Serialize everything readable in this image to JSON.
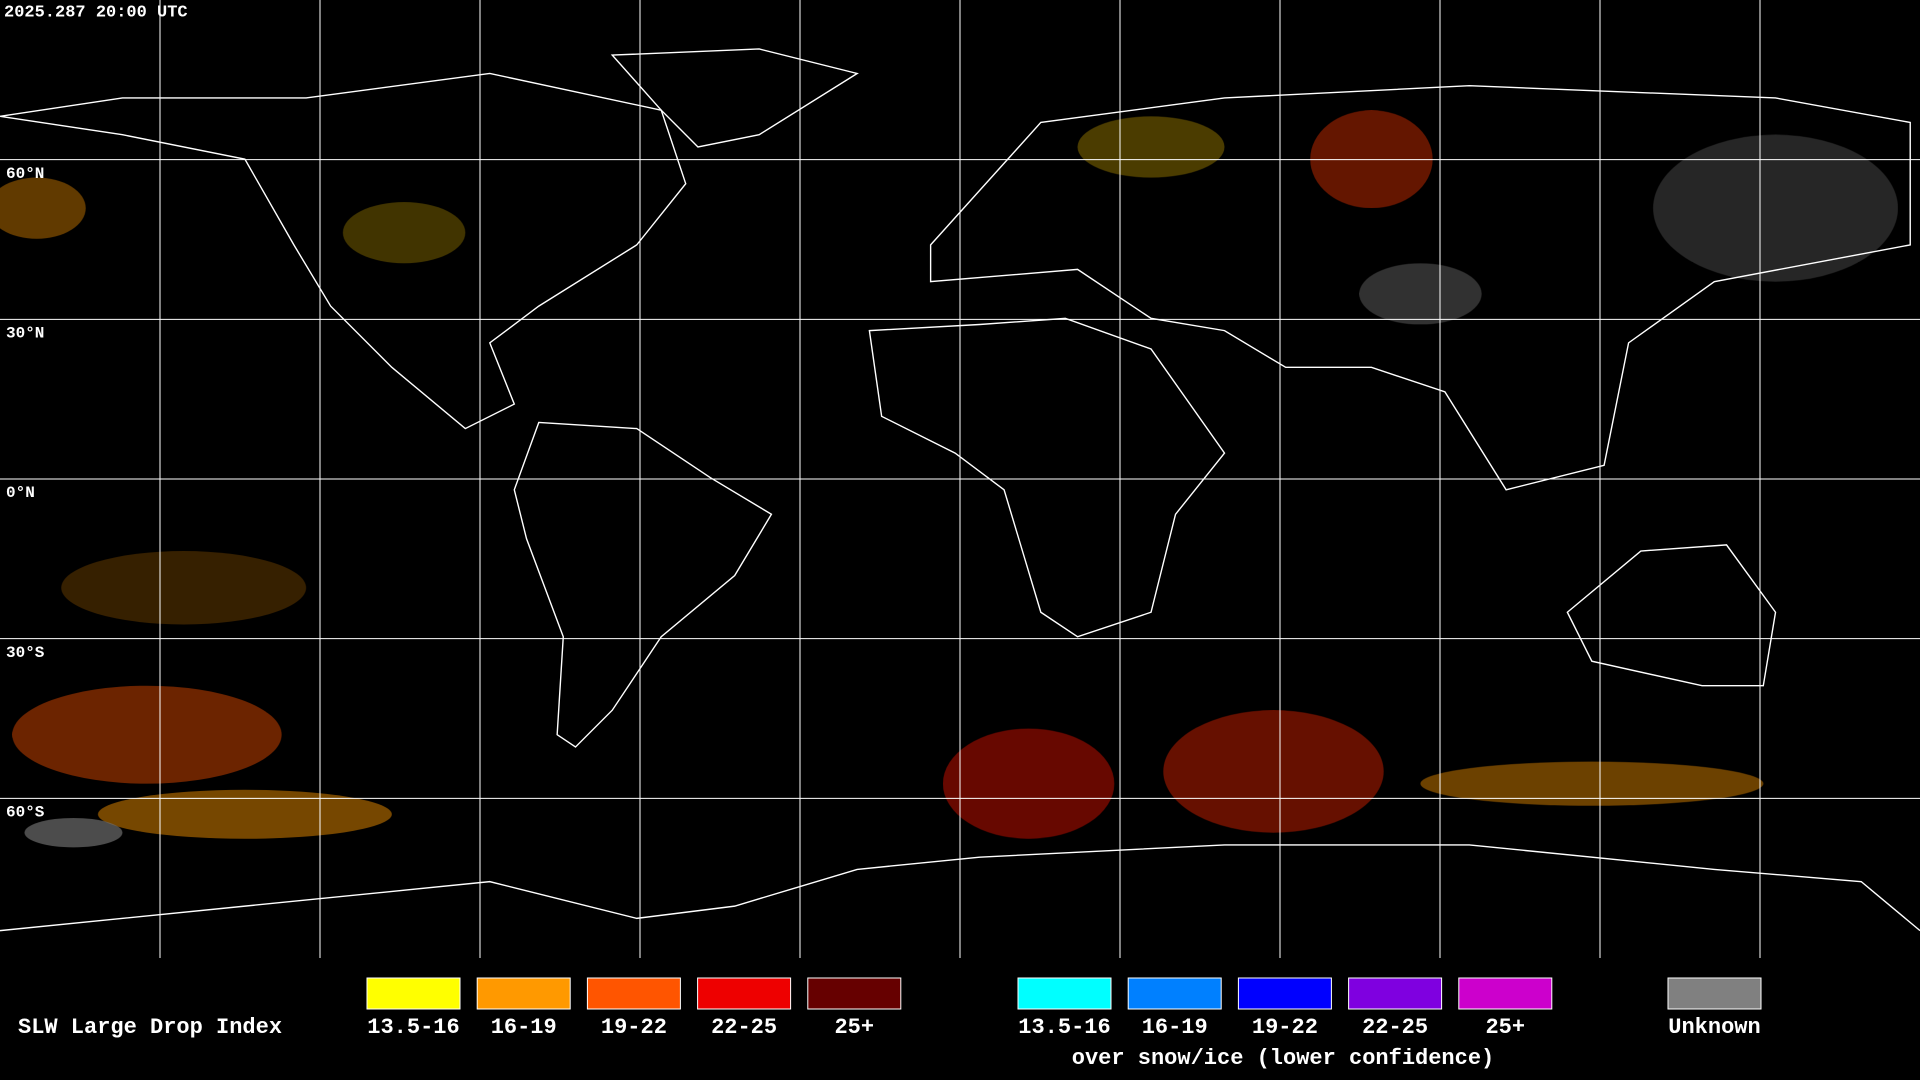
{
  "header": {
    "timestamp": "2025.287 20:00 UTC"
  },
  "latitude_labels": [
    "60°N",
    "30°N",
    "0°N",
    "30°S",
    "60°S"
  ],
  "legend": {
    "title": "SLW Large Drop Index",
    "items": [
      {
        "label": "13.5-16",
        "color": "#ffff00"
      },
      {
        "label": "16-19",
        "color": "#ff9900"
      },
      {
        "label": "19-22",
        "color": "#ff5500"
      },
      {
        "label": "22-25",
        "color": "#ee0000"
      },
      {
        "label": "25+",
        "color": "#660000"
      }
    ],
    "snow_ice_items": [
      {
        "label": "13.5-16",
        "color": "#00ffff"
      },
      {
        "label": "16-19",
        "color": "#0080ff"
      },
      {
        "label": "19-22",
        "color": "#0000ff"
      },
      {
        "label": "22-25",
        "color": "#7f00e0"
      },
      {
        "label": "25+",
        "color": "#cc00cc"
      }
    ],
    "snow_ice_caption": "over snow/ice (lower confidence)",
    "unknown": {
      "label": "Unknown",
      "color": "#808080"
    }
  }
}
